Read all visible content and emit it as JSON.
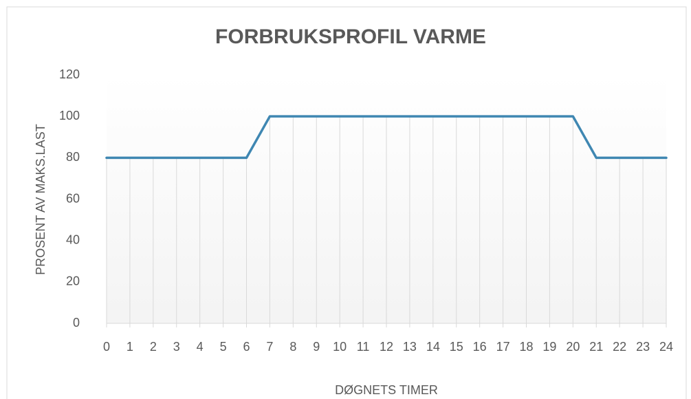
{
  "chart_data": {
    "type": "line",
    "title": "FORBRUKSPROFIL VARME",
    "xlabel": "DØGNETS TIMER",
    "ylabel": "PROSENT AV MAKS.LAST",
    "x": [
      0,
      1,
      2,
      3,
      4,
      5,
      6,
      7,
      8,
      9,
      10,
      11,
      12,
      13,
      14,
      15,
      16,
      17,
      18,
      19,
      20,
      21,
      22,
      23,
      24
    ],
    "values": [
      80,
      80,
      80,
      80,
      80,
      80,
      80,
      100,
      100,
      100,
      100,
      100,
      100,
      100,
      100,
      100,
      100,
      100,
      100,
      100,
      100,
      80,
      80,
      80,
      80
    ],
    "color": "#3f87b2",
    "xlim": [
      0,
      24
    ],
    "xticks": [
      0,
      1,
      2,
      3,
      4,
      5,
      6,
      7,
      8,
      9,
      10,
      11,
      12,
      13,
      14,
      15,
      16,
      17,
      18,
      19,
      20,
      21,
      22,
      23,
      24
    ],
    "ylim": [
      0,
      120
    ],
    "yticks": [
      0,
      20,
      40,
      60,
      80,
      100,
      120
    ],
    "drop_lines": true
  }
}
